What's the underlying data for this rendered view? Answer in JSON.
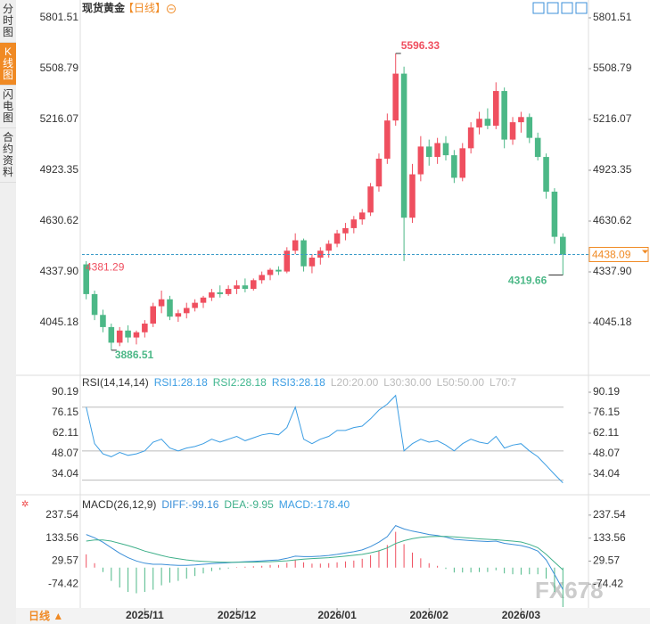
{
  "sidebar": [
    "分时图",
    "K线图",
    "闪电图",
    "合约资料"
  ],
  "header": {
    "title": "现货黄金",
    "period": "【日线】"
  },
  "footer": {
    "period": "日线 ▲"
  },
  "watermark": "FX678",
  "chart_data": [
    {
      "type": "candlestick",
      "up_color": "#ef4f5f",
      "down_color": "#4cb887",
      "categories": [
        null,
        null,
        null,
        null,
        null,
        null,
        null,
        "2025/11",
        null,
        null,
        null,
        null,
        null,
        null,
        null,
        null,
        null,
        null,
        "2025/12",
        null,
        null,
        null,
        null,
        null,
        null,
        null,
        null,
        null,
        null,
        null,
        "2026/01",
        null,
        null,
        null,
        null,
        null,
        null,
        null,
        null,
        null,
        null,
        "2026/02",
        null,
        null,
        null,
        null,
        null,
        null,
        null,
        null,
        null,
        null,
        "2026/03",
        null,
        null,
        null,
        null,
        null
      ],
      "open": [
        4381.29,
        4210,
        4090,
        4020,
        3930,
        4000,
        3960,
        3990,
        4040,
        4140,
        4180,
        4080,
        4100,
        4130,
        4160,
        4190,
        4220,
        4210,
        4240,
        4260,
        4240,
        4290,
        4320,
        4350,
        4340,
        4460,
        4520,
        4370,
        4420,
        4460,
        4500,
        4560,
        4590,
        4640,
        4680,
        4830,
        4990,
        5210,
        5480,
        4650,
        4900,
        5060,
        5000,
        5080,
        5010,
        4880,
        5050,
        5170,
        5220,
        5180,
        5380,
        5100,
        5200,
        5230,
        5110,
        5000,
        4800,
        4540
      ],
      "high": [
        4400,
        4230,
        4120,
        4040,
        4020,
        4030,
        4000,
        4060,
        4160,
        4230,
        4200,
        4120,
        4160,
        4180,
        4200,
        4240,
        4260,
        4260,
        4290,
        4300,
        4300,
        4340,
        4360,
        4370,
        4480,
        4560,
        4530,
        4440,
        4480,
        4520,
        4580,
        4620,
        4660,
        4700,
        4850,
        5020,
        5250,
        5596.33,
        5520,
        4960,
        5120,
        5100,
        5110,
        5120,
        5040,
        5080,
        5200,
        5260,
        5280,
        5430,
        5400,
        5230,
        5260,
        5250,
        5140,
        5020,
        4820,
        4560
      ],
      "low": [
        4180,
        4060,
        3990,
        3886.51,
        3910,
        3930,
        3920,
        3960,
        4020,
        4100,
        4060,
        4050,
        4070,
        4110,
        4130,
        4170,
        4190,
        4200,
        4210,
        4220,
        4230,
        4270,
        4290,
        4320,
        4330,
        4440,
        4340,
        4330,
        4380,
        4420,
        4480,
        4520,
        4560,
        4610,
        4660,
        4800,
        4960,
        5180,
        4400,
        4620,
        4860,
        4950,
        4960,
        4980,
        4850,
        4860,
        5020,
        5130,
        5160,
        5160,
        5050,
        5070,
        5140,
        5080,
        4980,
        4760,
        4500,
        4319.66
      ],
      "close": [
        4210,
        4090,
        4020,
        3930,
        4000,
        3960,
        3990,
        4040,
        4140,
        4180,
        4080,
        4100,
        4130,
        4160,
        4190,
        4220,
        4210,
        4240,
        4260,
        4240,
        4290,
        4320,
        4350,
        4340,
        4460,
        4520,
        4370,
        4420,
        4460,
        4500,
        4560,
        4590,
        4640,
        4680,
        4830,
        4990,
        5210,
        5480,
        4650,
        4900,
        5060,
        5000,
        5080,
        5010,
        4880,
        5050,
        5170,
        5220,
        5180,
        5380,
        5100,
        5200,
        5230,
        5110,
        5000,
        4800,
        4540,
        4438.09
      ],
      "ylim": [
        3757.6,
        5863.1
      ],
      "yticks": [
        5801.51,
        5508.79,
        5216.07,
        4923.35,
        4630.62,
        {
          "value": 4337.9,
          "label": "4337.90"
        },
        4045.18
      ]
    },
    {
      "type": "line",
      "title": "RSI(14,14,14)",
      "legend_extra": [
        "L20:20.00",
        "L30:30.00",
        "L50:50.00",
        "L70:7"
      ],
      "series": [
        {
          "name": "RSI1:28.18",
          "color": "#3b9de3",
          "values": [
            80,
            55,
            48,
            46,
            49,
            47,
            48,
            50,
            56,
            58,
            52,
            50,
            52,
            53,
            55,
            58,
            56,
            58,
            60,
            57,
            59,
            61,
            62,
            61,
            66,
            80,
            58,
            55,
            58,
            60,
            64,
            64,
            66,
            67,
            72,
            78,
            82,
            88,
            50,
            55,
            58,
            56,
            57,
            54,
            50,
            55,
            58,
            56,
            55,
            60,
            52,
            54,
            55,
            50,
            46,
            40,
            34,
            28.18
          ]
        },
        {
          "name": "RSI2:28.18",
          "color": "#3fb68e",
          "values": null
        },
        {
          "name": "RSI3:28.18",
          "color": "#3b9de3",
          "values": null
        }
      ],
      "levels": [
        80,
        50,
        30
      ],
      "ylim": [
        23.05,
        99.35
      ],
      "yticks": [
        90.19,
        76.15,
        62.11,
        48.07,
        34.04
      ]
    },
    {
      "type": "macd",
      "title": "MACD(26,12,9)",
      "series": [
        {
          "name": "DIFF:-99.16",
          "color": "#3b8fd8",
          "values": [
            150,
            135,
            115,
            90,
            65,
            45,
            30,
            20,
            15,
            15,
            12,
            10,
            10,
            12,
            15,
            18,
            20,
            22,
            25,
            27,
            28,
            30,
            33,
            35,
            42,
            52,
            50,
            50,
            52,
            55,
            60,
            66,
            72,
            80,
            95,
            115,
            140,
            190,
            175,
            165,
            158,
            150,
            145,
            138,
            128,
            125,
            122,
            120,
            118,
            120,
            110,
            105,
            100,
            90,
            75,
            35,
            -30,
            -99.16
          ]
        },
        {
          "name": "DEA:-9.95",
          "color": "#3fb08a",
          "values": [
            120,
            125,
            125,
            120,
            110,
            100,
            88,
            75,
            65,
            55,
            46,
            40,
            35,
            31,
            28,
            26,
            25,
            24,
            24,
            25,
            25,
            26,
            27,
            29,
            31,
            35,
            38,
            41,
            43,
            45,
            48,
            52,
            56,
            60,
            67,
            76,
            89,
            109,
            122,
            131,
            137,
            140,
            141,
            141,
            139,
            136,
            133,
            130,
            128,
            126,
            123,
            120,
            116,
            105,
            90,
            60,
            25,
            -9.95
          ]
        },
        {
          "name": "MACD:-178.40",
          "color": "#3b9de3",
          "up_color": "#ef4f5f",
          "down_color": "#4cb887",
          "values": [
            60,
            20,
            -20,
            -60,
            -90,
            -110,
            -116,
            -110,
            -100,
            -80,
            -68,
            -60,
            -50,
            -38,
            -26,
            -16,
            -10,
            -4,
            2,
            4,
            6,
            8,
            12,
            12,
            22,
            34,
            24,
            18,
            18,
            20,
            24,
            28,
            32,
            40,
            56,
            78,
            102,
            162,
            106,
            68,
            42,
            20,
            8,
            -6,
            -22,
            -22,
            -22,
            -20,
            -20,
            -12,
            -26,
            -30,
            -32,
            -30,
            -30,
            -50,
            -110,
            -178.4
          ]
        }
      ],
      "ylim": [
        -174.4,
        309.5
      ],
      "yticks": [
        237.54,
        133.56,
        29.57,
        -74.42
      ]
    }
  ]
}
